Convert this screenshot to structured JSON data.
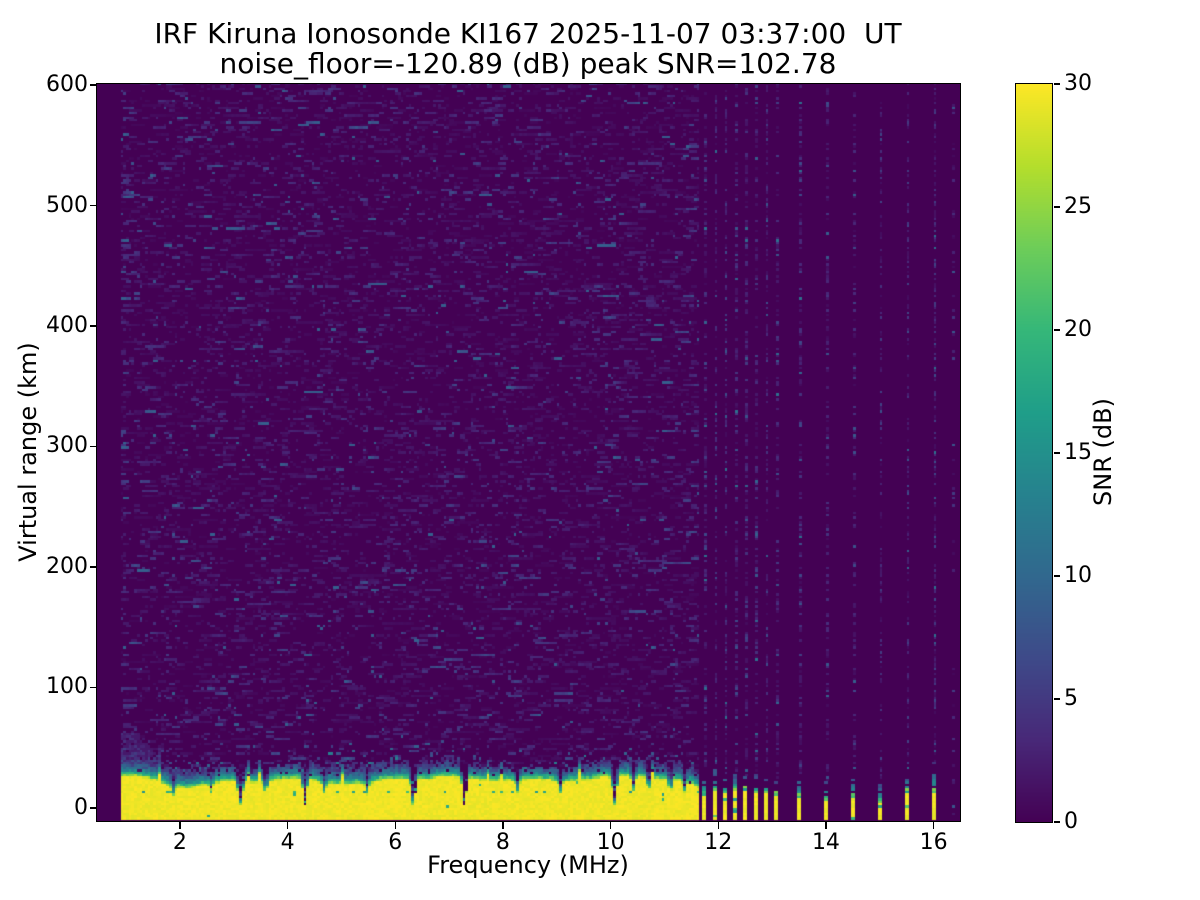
{
  "chart_data": {
    "type": "heatmap",
    "title": "IRF Kiruna Ionosonde KI167 2025-11-07 03:37:00  UT",
    "subtitle": "noise_floor=-120.89 (dB) peak SNR=102.78",
    "xlabel": "Frequency (MHz)",
    "ylabel": "Virtual range (km)",
    "colorbar_label": "SNR (dB)",
    "noise_floor_db": -120.89,
    "peak_snr_db": 102.78,
    "xlim": [
      0.46,
      16.49
    ],
    "ylim": [
      -11,
      601
    ],
    "x_ticks": [
      2,
      4,
      6,
      8,
      10,
      12,
      14,
      16
    ],
    "y_ticks": [
      0,
      100,
      200,
      300,
      400,
      500,
      600
    ],
    "colorbar_ticks": [
      0,
      5,
      10,
      15,
      20,
      25,
      30
    ],
    "value_range": [
      0,
      30
    ],
    "colormap": "viridis",
    "viridis_stops": [
      [
        68,
        1,
        84
      ],
      [
        72,
        40,
        120
      ],
      [
        62,
        74,
        137
      ],
      [
        49,
        104,
        142
      ],
      [
        38,
        130,
        142
      ],
      [
        31,
        158,
        137
      ],
      [
        53,
        183,
        121
      ],
      [
        109,
        205,
        89
      ],
      [
        180,
        222,
        44
      ],
      [
        253,
        231,
        37
      ]
    ],
    "background_color": "#440154",
    "sweep": {
      "f_start": 0.9,
      "f_end": 11.62,
      "f_step": 0.05,
      "range_step_km": 2
    },
    "background_noise": {
      "fresh_prob": 0.14,
      "continue_prob": 0.52,
      "mean_db": 1.6,
      "max_db": 9,
      "left_edge_boost_until_mhz": 1.0,
      "left_edge_density_factor": 1.8
    },
    "echo_band": {
      "strong_top_km": 21.5,
      "fringe_km": 15,
      "left_enhancement": {
        "freq_mhz": 1.05,
        "extra_km": 20
      },
      "inner_echo_line_km": 13,
      "notches_deep_mhz": [
        3.1,
        4.3,
        6.31,
        7.26,
        10.05
      ],
      "notches_medium_mhz": [
        1.85,
        2.55,
        3.57,
        4.66,
        5.45,
        8.25,
        9.05,
        10.4,
        10.68,
        11.08,
        11.35
      ]
    },
    "rfi_stripes": {
      "cluster": {
        "f_start": 11.74,
        "spacing_mhz": 0.19,
        "count": 8,
        "yellow_tops_km": [
          10.5,
          13,
          13,
          14,
          13,
          12,
          11,
          9
        ],
        "teal_tops_km": [
          29,
          31,
          28,
          30,
          27,
          26,
          24,
          22
        ]
      },
      "spot": [
        {
          "f": 13.5,
          "yellow_top_km": 8,
          "teal_top_km": 27
        },
        {
          "f": 14.0,
          "yellow_top_km": 6,
          "teal_top_km": 23
        },
        {
          "f": 14.5,
          "yellow_top_km": 9,
          "teal_top_km": 27
        },
        {
          "f": 15.0,
          "yellow_top_km": 4,
          "teal_top_km": 20
        },
        {
          "f": 15.5,
          "yellow_top_km": 12,
          "teal_top_km": 29
        },
        {
          "f": 16.0,
          "yellow_top_km": 13,
          "teal_top_km": 38
        }
      ],
      "faint_column_mhz": 16.35,
      "column_noise_density": 0.4
    },
    "seed": 20251107
  }
}
